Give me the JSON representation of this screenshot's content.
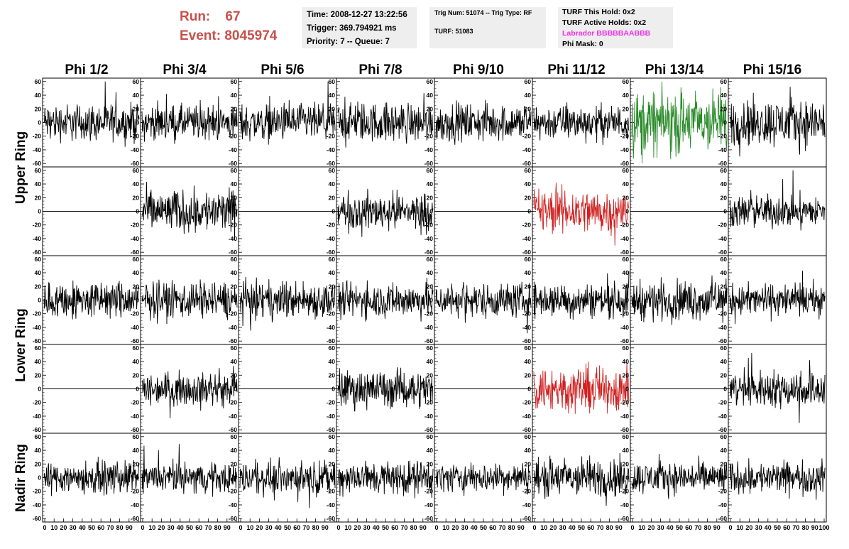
{
  "run_info": {
    "run_label": "Run:",
    "run_value": "67",
    "event_label": "Event:",
    "event_value": "8045974"
  },
  "info_box_1": {
    "time": "Time: 2008-12-27 13:22:56",
    "trigger": "Trigger: 369.794921 ms",
    "priority": "Priority: 7 -- Queue: 7"
  },
  "info_box_2": {
    "trig": "Trig Num: 51074 -- Trig Type: RF",
    "turf": "TURF: 51083"
  },
  "info_box_3": {
    "hold": "TURF This Hold: 0x2",
    "active": "TURF Active Holds: 0x2",
    "labrador": "Labrador BBBBBAABBB",
    "phimask": "Phi Mask: 0"
  },
  "columns": [
    "Phi 1/2",
    "Phi 3/4",
    "Phi 5/6",
    "Phi 7/8",
    "Phi 9/10",
    "Phi 11/12",
    "Phi 13/14",
    "Phi 15/16"
  ],
  "rings": [
    "Upper Ring",
    "Lower Ring",
    "Nadir Ring"
  ],
  "colors": {
    "runinfo": "#c8504b",
    "labrador": "#ee2ee8",
    "trace_default": "#000000",
    "trace_green": "#2a8a2a",
    "trace_red": "#d02020",
    "infobox_bg": "#eeeeee"
  },
  "y_tick_labels": [
    "60",
    "40",
    "20",
    "0",
    "-20",
    "-40",
    "-60"
  ],
  "x_tick_labels": [
    "0",
    "10",
    "20",
    "30",
    "40",
    "50",
    "60",
    "70",
    "80",
    "90",
    "100"
  ],
  "chart_data": {
    "type": "line",
    "xlim": [
      0,
      100
    ],
    "ylim": [
      -65,
      65
    ],
    "xlabel": "",
    "ylabel": "",
    "rows": 5,
    "cols": 8,
    "panels_note_flat": [
      [
        1,
        0
      ],
      [
        1,
        2
      ],
      [
        1,
        4
      ],
      [
        1,
        6
      ],
      [
        3,
        0
      ],
      [
        3,
        2
      ],
      [
        3,
        4
      ],
      [
        3,
        6
      ]
    ],
    "panel_colors": {
      "0-6": "green",
      "1-5": "red",
      "3-5": "red"
    },
    "panel_amplitudes": [
      [
        14,
        13,
        14,
        15,
        14,
        13,
        24,
        18
      ],
      [
        0,
        16,
        0,
        14,
        0,
        17,
        0,
        12
      ],
      [
        14,
        14,
        14,
        13,
        13,
        13,
        15,
        12
      ],
      [
        0,
        12,
        0,
        14,
        0,
        17,
        0,
        14
      ],
      [
        12,
        11,
        12,
        13,
        11,
        15,
        12,
        12
      ]
    ]
  }
}
